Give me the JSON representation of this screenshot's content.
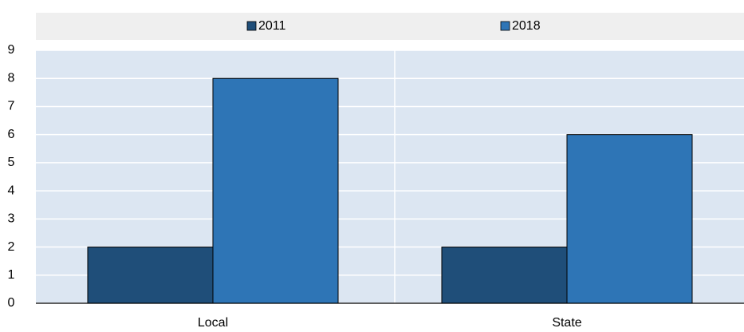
{
  "chart_data": {
    "type": "bar",
    "categories": [
      "Local",
      "State"
    ],
    "series": [
      {
        "name": "2011",
        "color": "#1f4e79",
        "values": [
          2,
          2
        ]
      },
      {
        "name": "2018",
        "color": "#2e75b6",
        "values": [
          8,
          6
        ]
      }
    ],
    "ylim": [
      0,
      9
    ],
    "yticks": [
      0,
      1,
      2,
      3,
      4,
      5,
      6,
      7,
      8,
      9
    ],
    "grid": true,
    "legend": "top"
  }
}
